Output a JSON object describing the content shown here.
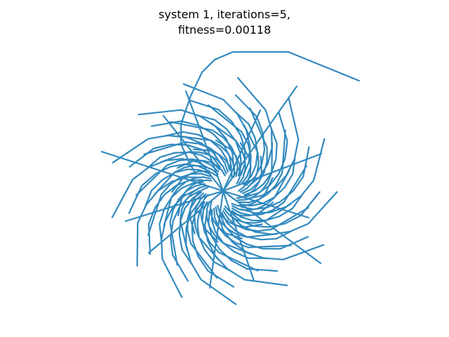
{
  "title": {
    "line1": "system 1, iterations=5,",
    "line2": "fitness=0.00118"
  },
  "colors": {
    "stroke": "#3189be",
    "background": "#ffffff"
  }
}
